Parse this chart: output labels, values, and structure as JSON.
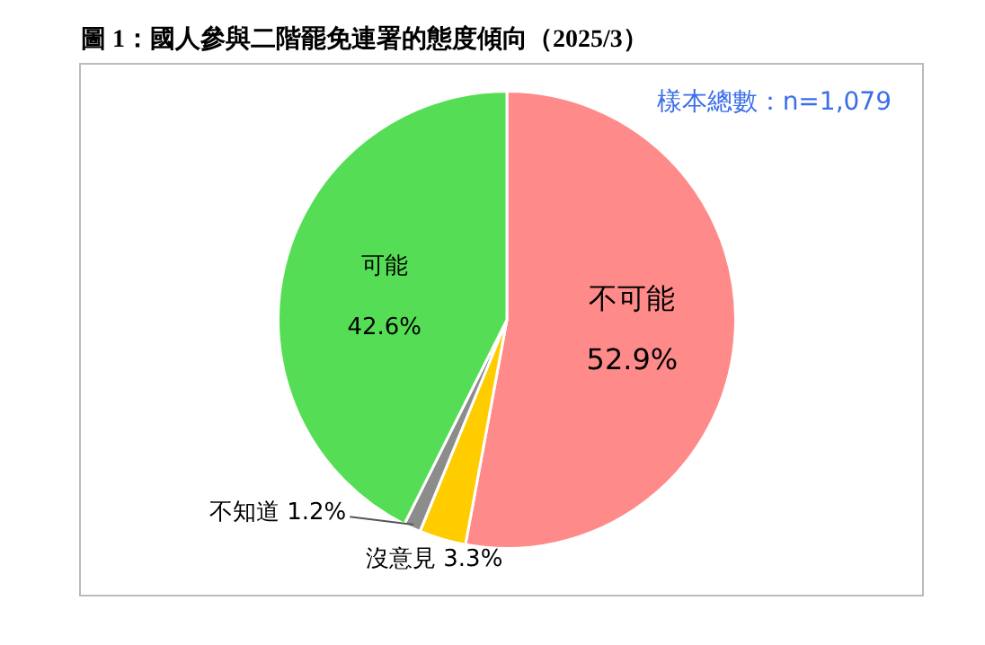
{
  "chart_data": {
    "type": "pie",
    "title": "圖 1：國人參與二階罷免連署的態度傾向（2025/3）",
    "annotations": [
      "樣本總數：n=1,079"
    ],
    "categories": [
      "不可能",
      "沒意見",
      "不知道",
      "可能"
    ],
    "values": [
      52.9,
      3.3,
      1.2,
      42.6
    ],
    "value_labels": [
      "52.9%",
      "3.3%",
      "1.2%",
      "42.6%"
    ],
    "colors": [
      "#ff8a8a",
      "#ffcc00",
      "#8c8c8c",
      "#55dd55"
    ],
    "legend": false
  }
}
